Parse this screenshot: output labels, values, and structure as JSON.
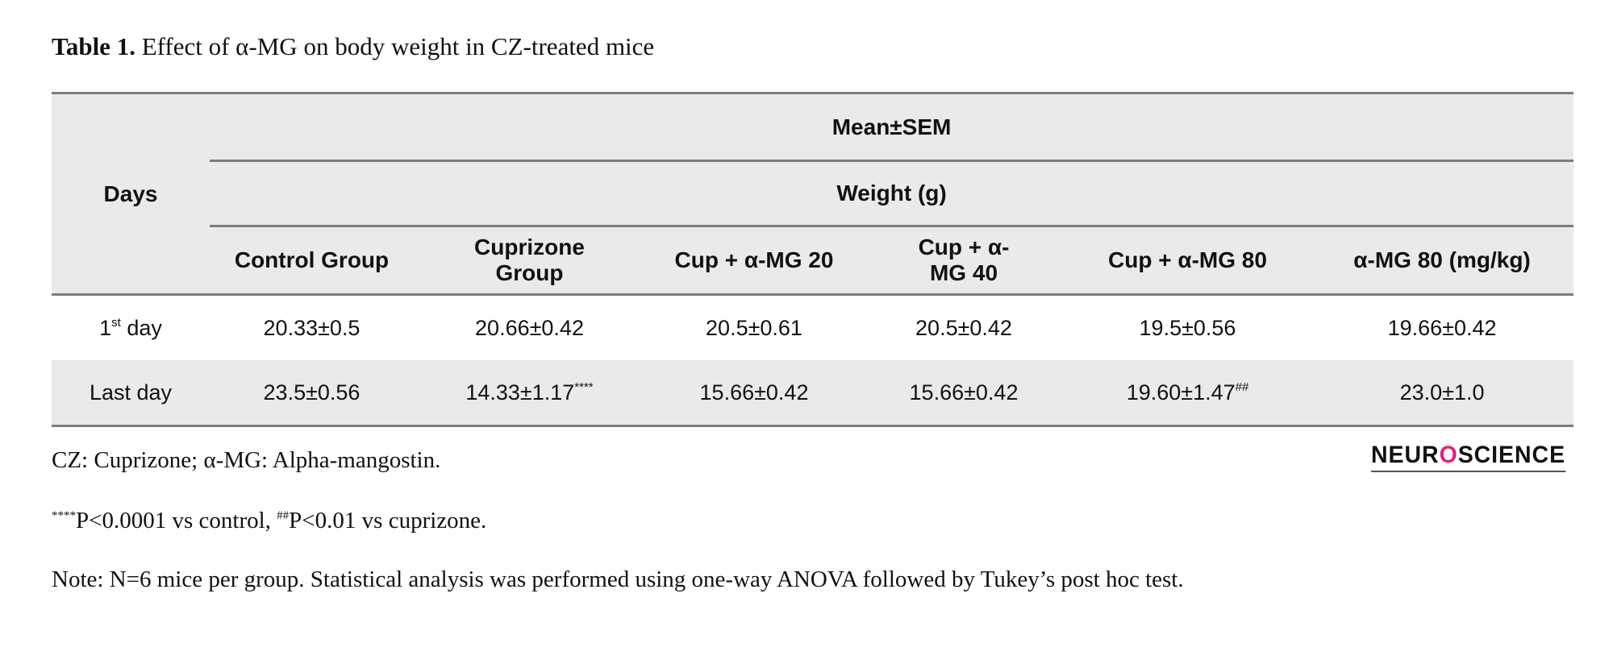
{
  "title": {
    "label": "Table 1.",
    "text": "Effect of α-MG on body weight in CZ-treated mice"
  },
  "table": {
    "days_header": "Days",
    "group_header": "Mean±SEM",
    "sub_header": "Weight (g)",
    "columns": [
      "Control Group",
      "Cuprizone Group",
      "Cup + α-MG 20",
      "Cup + α-MG 40",
      "Cup + α-MG 80",
      "α-MG 80 (mg/kg)"
    ],
    "rows": [
      {
        "day": "1",
        "day_sup": "st",
        "day_rest": " day",
        "cells": [
          {
            "v": "20.33±0.5",
            "s": ""
          },
          {
            "v": "20.66±0.42",
            "s": ""
          },
          {
            "v": "20.5±0.61",
            "s": ""
          },
          {
            "v": "20.5±0.42",
            "s": ""
          },
          {
            "v": "19.5±0.56",
            "s": ""
          },
          {
            "v": "19.66±0.42",
            "s": ""
          }
        ]
      },
      {
        "day": "Last day",
        "day_sup": "",
        "day_rest": "",
        "cells": [
          {
            "v": "23.5±0.56",
            "s": ""
          },
          {
            "v": "14.33±1.17",
            "s": "****"
          },
          {
            "v": "15.66±0.42",
            "s": ""
          },
          {
            "v": "15.66±0.42",
            "s": ""
          },
          {
            "v": "19.60±1.47",
            "s": "##"
          },
          {
            "v": "23.0±1.0",
            "s": ""
          }
        ]
      }
    ]
  },
  "footnotes": {
    "abbrev": "CZ: Cuprizone; α-MG: Alpha-mangostin.",
    "sig_sup1": "****",
    "sig_text1": "P<0.0001 vs control, ",
    "sig_sup2": "##",
    "sig_text2": "P<0.01 vs cuprizone.",
    "note": "Note: N=6 mice per group. Statistical analysis was performed using one-way ANOVA followed by Tukey’s post hoc test."
  },
  "logo": {
    "part1": "NEUR",
    "part2": "O",
    "part3": "SCIENCE"
  },
  "colors": {
    "header_bg": "#e9eaec",
    "rule": "#7d7d7d",
    "logo_accent": "#e0207a"
  }
}
